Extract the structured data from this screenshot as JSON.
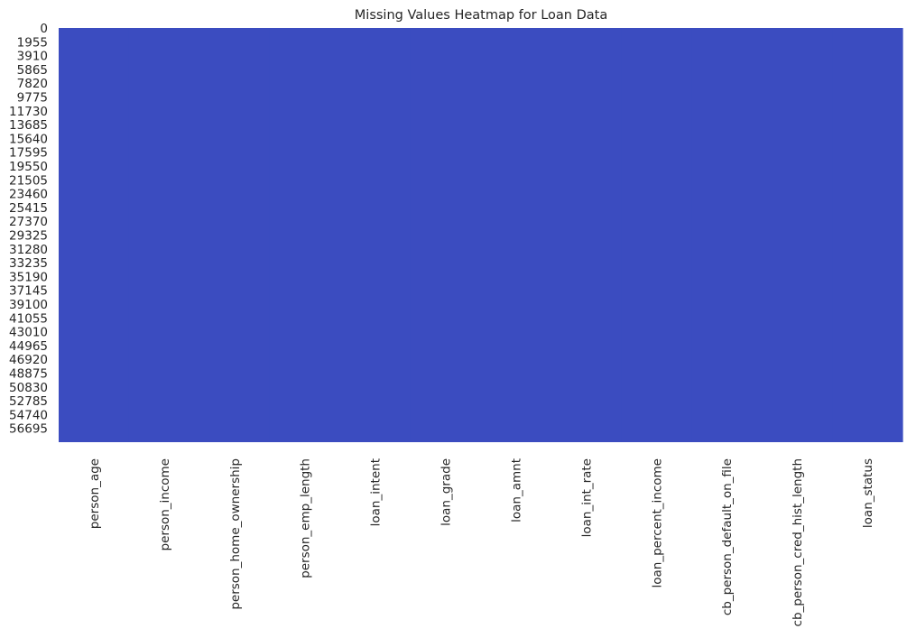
{
  "chart_data": {
    "type": "heatmap",
    "title": "Missing Values Heatmap for Loan Data",
    "xlabel": "",
    "ylabel": "",
    "colorbar": false,
    "grid": false,
    "colors": {
      "cell": "#3b4cc0",
      "background": "#ffffff",
      "text": "#262626"
    },
    "columns": [
      "person_age",
      "person_income",
      "person_home_ownership",
      "person_emp_length",
      "loan_intent",
      "loan_grade",
      "loan_amnt",
      "loan_int_rate",
      "loan_percent_income",
      "cb_person_default_on_file",
      "cb_person_cred_hist_length",
      "loan_status"
    ],
    "row_tick_labels": [
      "0",
      "1955",
      "3910",
      "5865",
      "7820",
      "9775",
      "11730",
      "13685",
      "15640",
      "17595",
      "19550",
      "21505",
      "23460",
      "25415",
      "27370",
      "29325",
      "31280",
      "33235",
      "35190",
      "37145",
      "39100",
      "41055",
      "43010",
      "44965",
      "46920",
      "48875",
      "50830",
      "52785",
      "54740",
      "56695"
    ],
    "row_tick_step": 1955,
    "row_count": 58645,
    "missing": [
      0,
      0,
      0,
      0,
      0,
      0,
      0,
      0,
      0,
      0,
      0,
      0
    ]
  }
}
